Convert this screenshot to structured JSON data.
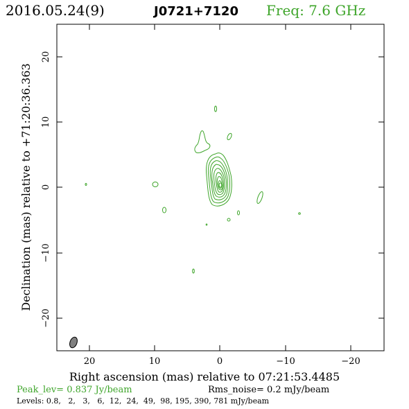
{
  "header": {
    "date": "2016.05.24(9)",
    "source": "J0721+7120",
    "freq": "Freq: 7.6 GHz"
  },
  "axes": {
    "xlabel": "Right ascension (mas) relative to 07:21:53.4485",
    "ylabel": "Declination (mas) relative to +71:20:36.363",
    "x_ticks": [
      "20",
      "10",
      "0",
      "−10",
      "−20"
    ],
    "y_ticks": [
      "20",
      "10",
      "0",
      "−10",
      "−20"
    ]
  },
  "footer": {
    "peak": "Peak_lev=  0.837 Jy/beam",
    "rms": "Rms_noise=  0.2 mJy/beam",
    "levels": "Levels: 0.8,   2,   3,   6,  12,  24,  49,  98, 195, 390, 781 mJy/beam"
  },
  "colors": {
    "contour": "#3ea52a",
    "header_freq": "#3ea52a",
    "peak_text": "#3ea52a",
    "beam": "#808080",
    "axis": "#000000"
  }
}
